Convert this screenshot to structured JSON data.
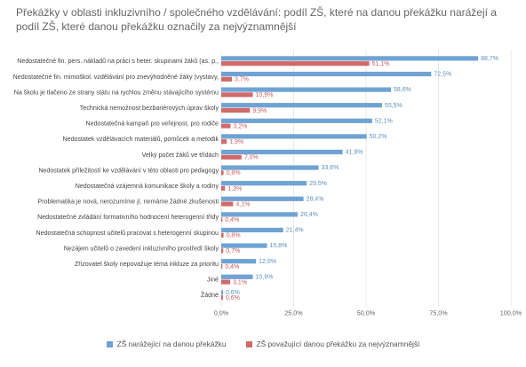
{
  "chart_data": {
    "type": "bar",
    "orientation": "horizontal",
    "title": "Překážky v oblasti inkluzivního / společného vzdělávání: podíl ZŠ, které na danou překážku narážejí a podíl ZŠ, které danou překážku označily za nejvýznamnější",
    "categories": [
      "Nedostatečné fin. pers. nákladů na práci s heter. skupinami žáků (as. p.,",
      "Nedostatečné fin. mimoškol. vzdělávání pro znevýhodněné žáky (vystavy,",
      "Na školu je tlačeno ze strany státu na rychlou změnu stávajícího systému",
      "Technická nemožnost bezbariérových úprav školy",
      "Nedostatečná kampaň pro veřejnost, pro rodiče",
      "Nedostatek vzdělávacích materiálů, pomůcek a metodik",
      "Velký počet žáků ve třídách",
      "Nedostatek příležitostí ke vzdělávání v této oblasti pro pedagogy",
      "Nedostatečná vzájemná komunikace školy a rodiny",
      "Problematika je nová, nerozumíme jí, nemáme žádné zkušenosti",
      "Nedostatečné zvládání formativního hodnocení heterogenní třídy",
      "Nedostatečná schopnost učitelů pracovat s heterogenní skupinou",
      "Nezájem učitelů o zavedení inkluzivního prostředí školy",
      "Zřizovatel školy nepovažuje téma inkluze za prioritu",
      "Jiné",
      "Žádné"
    ],
    "series": [
      {
        "name": "ZŠ narážející na danou překážku",
        "color": "#6fa3d4",
        "values": [
          88.7,
          72.5,
          58.6,
          55.5,
          52.1,
          50.2,
          41.9,
          33.6,
          29.5,
          28.4,
          26.4,
          21.4,
          15.8,
          12.0,
          10.9,
          0.6
        ],
        "labels": [
          "88,7%",
          "72,5%",
          "58,6%",
          "55,5%",
          "52,1%",
          "50,2%",
          "41,9%",
          "33,6%",
          "29,5%",
          "28,4%",
          "26,4%",
          "21,4%",
          "15,8%",
          "12,0%",
          "10,9%",
          "0,6%"
        ]
      },
      {
        "name": "ZŠ považující danou překážku za nejvýznamnější",
        "color": "#d26a6a",
        "values": [
          51.1,
          3.7,
          10.9,
          9.9,
          3.2,
          1.9,
          7.0,
          0.8,
          1.3,
          4.1,
          0.4,
          0.8,
          0.7,
          0.4,
          3.1,
          0.6
        ],
        "labels": [
          "51,1%",
          "3,7%",
          "10,9%",
          "9,9%",
          "3,2%",
          "1,9%",
          "7,0%",
          "0,8%",
          "1,3%",
          "4,1%",
          "0,4%",
          "0,8%",
          "0,7%",
          "0,4%",
          "3,1%",
          "0,6%"
        ]
      }
    ],
    "xlim": [
      0,
      100
    ],
    "x_ticks": [
      "0,0%",
      "25,0%",
      "50,0%",
      "75,0%",
      "100,0%"
    ],
    "grid": true,
    "legend_position": "bottom"
  }
}
